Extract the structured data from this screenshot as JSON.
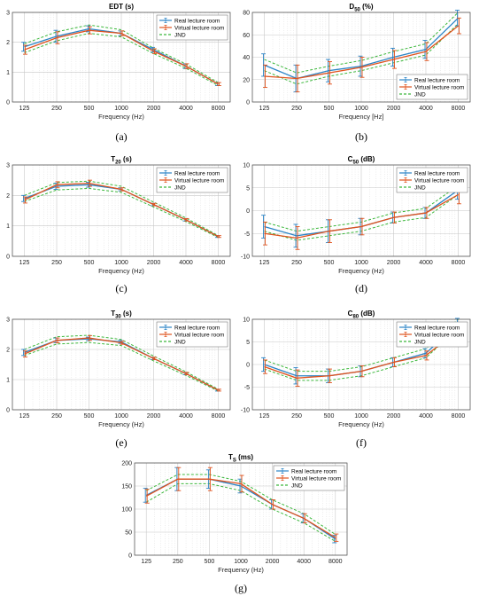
{
  "colors": {
    "real": "#2b84c6",
    "virtual": "#e0531e",
    "jnd": "#3cb83c"
  },
  "legend": {
    "real": "Real lecture room",
    "virtual": "Virtual lecture room",
    "jnd": "JND"
  },
  "chart_data": [
    {
      "panel": "a",
      "caption": "(a)",
      "type": "line",
      "title": "EDT (s)",
      "title_main": "EDT",
      "title_sub": "",
      "title_unit": " (s)",
      "xlabel": "Frequency (Hz)",
      "categories": [
        "125",
        "250",
        "500",
        "1000",
        "2000",
        "4000",
        "8000"
      ],
      "ylim": [
        0,
        3
      ],
      "yticks": [
        "0",
        "1",
        "2",
        "3"
      ],
      "grid": true,
      "legend_position": "top-right",
      "series": [
        {
          "name": "Real lecture room",
          "values": [
            1.85,
            2.2,
            2.45,
            2.3,
            1.75,
            1.2,
            0.6
          ],
          "err": [
            0.15,
            0.2,
            0.1,
            0.08,
            0.08,
            0.08,
            0.05
          ]
        },
        {
          "name": "Virtual lecture room",
          "values": [
            1.75,
            2.15,
            2.4,
            2.3,
            1.7,
            1.2,
            0.6
          ],
          "err": [
            0.15,
            0.2,
            0.12,
            0.08,
            0.08,
            0.08,
            0.05
          ]
        }
      ],
      "jnd": {
        "upper": [
          1.95,
          2.35,
          2.58,
          2.42,
          1.8,
          1.27,
          0.65
        ],
        "lower": [
          1.65,
          2.05,
          2.3,
          2.18,
          1.62,
          1.13,
          0.55
        ]
      }
    },
    {
      "panel": "b",
      "caption": "(b)",
      "type": "line",
      "title": "D50 (%)",
      "title_main": "D",
      "title_sub": "50",
      "title_unit": " (%)",
      "xlabel": "Frequency [Hz]",
      "categories": [
        "125",
        "250",
        "500",
        "1000",
        "2000",
        "4000",
        "8000"
      ],
      "ylim": [
        0,
        80
      ],
      "yticks": [
        "0",
        "20",
        "40",
        "60",
        "80"
      ],
      "grid": true,
      "legend_position": "bottom-right",
      "series": [
        {
          "name": "Real lecture room",
          "values": [
            33,
            21,
            28,
            32,
            40,
            47,
            75
          ],
          "err": [
            10,
            12,
            10,
            9,
            8,
            8,
            7
          ]
        },
        {
          "name": "Virtual lecture room",
          "values": [
            23,
            21,
            26,
            31,
            38,
            45,
            68
          ],
          "err": [
            10,
            12,
            10,
            9,
            8,
            8,
            7
          ]
        }
      ],
      "jnd": {
        "upper": [
          38,
          26,
          32,
          37,
          45,
          52,
          80
        ],
        "lower": [
          28,
          16,
          23,
          28,
          35,
          42,
          70
        ]
      }
    },
    {
      "panel": "c",
      "caption": "(c)",
      "type": "line",
      "title": "T20 (s)",
      "title_main": "T",
      "title_sub": "20",
      "title_unit": " (s)",
      "xlabel": "Frequency (Hz)",
      "categories": [
        "125",
        "250",
        "500",
        "1000",
        "2000",
        "4000",
        "8000"
      ],
      "ylim": [
        0,
        3
      ],
      "yticks": [
        "0",
        "1",
        "2",
        "3"
      ],
      "grid": true,
      "legend_position": "top-right",
      "series": [
        {
          "name": "Real lecture room",
          "values": [
            1.9,
            2.3,
            2.35,
            2.2,
            1.7,
            1.2,
            0.65
          ],
          "err": [
            0.1,
            0.1,
            0.08,
            0.05,
            0.04,
            0.04,
            0.03
          ]
        },
        {
          "name": "Virtual lecture room",
          "values": [
            1.85,
            2.35,
            2.4,
            2.2,
            1.7,
            1.2,
            0.65
          ],
          "err": [
            0.1,
            0.1,
            0.1,
            0.05,
            0.04,
            0.04,
            0.03
          ]
        }
      ],
      "jnd": {
        "upper": [
          2.0,
          2.42,
          2.47,
          2.3,
          1.78,
          1.26,
          0.68
        ],
        "lower": [
          1.8,
          2.18,
          2.23,
          2.1,
          1.62,
          1.14,
          0.62
        ]
      }
    },
    {
      "panel": "d",
      "caption": "(d)",
      "type": "line",
      "title": "C50 (dB)",
      "title_main": "C",
      "title_sub": "50",
      "title_unit": " (dB)",
      "xlabel": "Frequency (Hz)",
      "categories": [
        "125",
        "250",
        "500",
        "1000",
        "2000",
        "4000",
        "8000"
      ],
      "ylim": [
        -10,
        10
      ],
      "yticks": [
        "-10",
        "-5",
        "0",
        "5",
        "10"
      ],
      "grid": true,
      "legend_position": "top-right",
      "series": [
        {
          "name": "Real lecture room",
          "values": [
            -3.5,
            -5.5,
            -4.5,
            -3.5,
            -1.5,
            -0.5,
            4.5
          ],
          "err": [
            2.5,
            2.5,
            2.5,
            1.8,
            1.2,
            1.2,
            2.0
          ]
        },
        {
          "name": "Virtual lecture room",
          "values": [
            -5,
            -6,
            -4.5,
            -3.5,
            -1.5,
            -0.5,
            3.5
          ],
          "err": [
            2.5,
            2.5,
            2.5,
            1.8,
            1.2,
            1.2,
            2.0
          ]
        }
      ],
      "jnd": {
        "upper": [
          -2.5,
          -4.5,
          -3.5,
          -2.5,
          -0.5,
          0.5,
          5.5
        ],
        "lower": [
          -4.5,
          -6.5,
          -5.5,
          -4.5,
          -2.5,
          -1.5,
          3.5
        ]
      }
    },
    {
      "panel": "e",
      "caption": "(e)",
      "type": "line",
      "title": "T30 (s)",
      "title_main": "T",
      "title_sub": "30",
      "title_unit": " (s)",
      "xlabel": "Frequency (Hz)",
      "categories": [
        "125",
        "250",
        "500",
        "1000",
        "2000",
        "4000",
        "8000"
      ],
      "ylim": [
        0,
        3
      ],
      "yticks": [
        "0",
        "1",
        "2",
        "3"
      ],
      "grid": true,
      "legend_position": "top-right",
      "series": [
        {
          "name": "Real lecture room",
          "values": [
            1.9,
            2.3,
            2.35,
            2.25,
            1.7,
            1.2,
            0.65
          ],
          "err": [
            0.1,
            0.08,
            0.06,
            0.05,
            0.04,
            0.04,
            0.03
          ]
        },
        {
          "name": "Virtual lecture room",
          "values": [
            1.85,
            2.3,
            2.38,
            2.22,
            1.7,
            1.2,
            0.65
          ],
          "err": [
            0.1,
            0.08,
            0.08,
            0.05,
            0.04,
            0.04,
            0.03
          ]
        }
      ],
      "jnd": {
        "upper": [
          2.0,
          2.42,
          2.47,
          2.33,
          1.78,
          1.26,
          0.68
        ],
        "lower": [
          1.8,
          2.18,
          2.23,
          2.13,
          1.62,
          1.14,
          0.62
        ]
      }
    },
    {
      "panel": "f",
      "caption": "(f)",
      "type": "line",
      "title": "C80 (dB)",
      "title_main": "C",
      "title_sub": "80",
      "title_unit": " (dB)",
      "xlabel": "Frequency (Hz)",
      "categories": [
        "125",
        "250",
        "500",
        "1000",
        "2000",
        "4000",
        "8000"
      ],
      "ylim": [
        -10,
        10
      ],
      "yticks": [
        "-10",
        "-5",
        "0",
        "5",
        "10"
      ],
      "grid": true,
      "legend_position": "top-right",
      "series": [
        {
          "name": "Real lecture room",
          "values": [
            0,
            -2.5,
            -2.5,
            -1.5,
            0.5,
            2.5,
            9
          ],
          "err": [
            1.5,
            1.8,
            1.5,
            1.2,
            1.0,
            1.0,
            1.2
          ]
        },
        {
          "name": "Virtual lecture room",
          "values": [
            -0.5,
            -3,
            -2.5,
            -1.5,
            0.5,
            2,
            7.5
          ],
          "err": [
            1.5,
            1.8,
            1.5,
            1.2,
            1.0,
            1.0,
            1.2
          ]
        }
      ],
      "jnd": {
        "upper": [
          1.0,
          -1.5,
          -1.5,
          -0.5,
          1.5,
          3.5,
          10
        ],
        "lower": [
          -1.0,
          -3.5,
          -3.5,
          -2.5,
          -0.5,
          1.5,
          8
        ]
      }
    },
    {
      "panel": "g",
      "caption": "(g)",
      "type": "line",
      "title": "TS (ms)",
      "title_main": "T",
      "title_sub": "S",
      "title_unit": " (ms)",
      "xlabel": "Frequency (Hz)",
      "categories": [
        "125",
        "250",
        "500",
        "1000",
        "2000",
        "4000",
        "8000"
      ],
      "ylim": [
        0,
        200
      ],
      "yticks": [
        "0",
        "50",
        "100",
        "150",
        "200"
      ],
      "grid": true,
      "legend_position": "top-right",
      "series": [
        {
          "name": "Real lecture room",
          "values": [
            130,
            165,
            165,
            150,
            110,
            80,
            35
          ],
          "err": [
            15,
            25,
            20,
            15,
            10,
            10,
            8
          ]
        },
        {
          "name": "Virtual lecture room",
          "values": [
            128,
            165,
            165,
            155,
            110,
            80,
            38
          ],
          "err": [
            15,
            25,
            25,
            18,
            10,
            10,
            8
          ]
        }
      ],
      "jnd": {
        "upper": [
          140,
          175,
          175,
          160,
          120,
          90,
          45
        ],
        "lower": [
          115,
          155,
          155,
          140,
          100,
          70,
          30
        ]
      }
    }
  ]
}
